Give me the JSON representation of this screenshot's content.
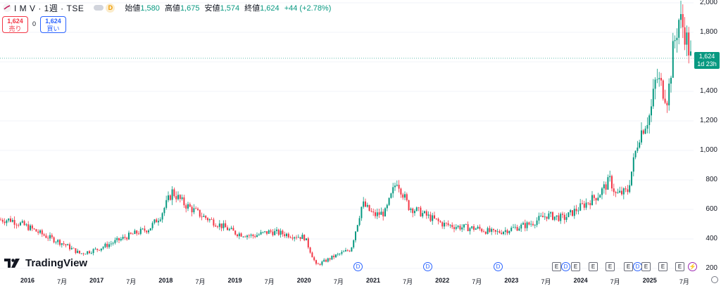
{
  "legend": {
    "symbol": "I M V · 1週 · TSE",
    "dividend_badge": "D",
    "open_label": "始値",
    "open": "1,580",
    "high_label": "高値",
    "high": "1,675",
    "low_label": "安値",
    "low": "1,574",
    "close_label": "終値",
    "close": "1,624",
    "change": "+44 (+2.78%)"
  },
  "trade": {
    "sell_price": "1,624",
    "sell_label": "売り",
    "spread": "0",
    "buy_price": "1,624",
    "buy_label": "買い"
  },
  "price_tag": {
    "price": "1,624",
    "countdown": "1d 23h"
  },
  "logo_text": "TradingView",
  "colors": {
    "up": "#089981",
    "down": "#f23645",
    "accent": "#2962ff"
  },
  "chart_data": {
    "type": "candlestick",
    "y_ticks": [
      "2,000",
      "1,800",
      "1,600",
      "1,400",
      "1,200",
      "1,000",
      "800",
      "600",
      "400",
      "200"
    ],
    "ylim": [
      200,
      2000
    ],
    "current_price": 1624,
    "x_ticks": [
      "2016",
      "7月",
      "2017",
      "7月",
      "2018",
      "7月",
      "2019",
      "7月",
      "2020",
      "7月",
      "2021",
      "7月",
      "2022",
      "7月",
      "2023",
      "7月",
      "2024",
      "7月",
      "2025",
      "7月"
    ],
    "series": [
      {
        "name": "IMV",
        "points": [
          [
            "2015-10",
            530
          ],
          [
            "2016-01",
            480
          ],
          [
            "2016-04",
            420
          ],
          [
            "2016-07",
            370
          ],
          [
            "2016-10",
            300
          ],
          [
            "2017-01",
            330
          ],
          [
            "2017-04",
            380
          ],
          [
            "2017-07",
            430
          ],
          [
            "2017-10",
            470
          ],
          [
            "2017-12",
            560
          ],
          [
            "2018-02",
            720
          ],
          [
            "2018-04",
            640
          ],
          [
            "2018-07",
            560
          ],
          [
            "2018-10",
            500
          ],
          [
            "2019-01",
            440
          ],
          [
            "2019-04",
            420
          ],
          [
            "2019-07",
            450
          ],
          [
            "2019-10",
            430
          ],
          [
            "2020-01",
            410
          ],
          [
            "2020-03",
            220
          ],
          [
            "2020-06",
            280
          ],
          [
            "2020-09",
            330
          ],
          [
            "2020-11",
            640
          ],
          [
            "2021-01",
            560
          ],
          [
            "2021-03",
            580
          ],
          [
            "2021-05",
            800
          ],
          [
            "2021-07",
            620
          ],
          [
            "2021-10",
            560
          ],
          [
            "2022-01",
            500
          ],
          [
            "2022-04",
            480
          ],
          [
            "2022-07",
            470
          ],
          [
            "2022-10",
            440
          ],
          [
            "2023-01",
            470
          ],
          [
            "2023-04",
            500
          ],
          [
            "2023-07",
            560
          ],
          [
            "2023-10",
            540
          ],
          [
            "2024-01",
            620
          ],
          [
            "2024-04",
            700
          ],
          [
            "2024-06",
            800
          ],
          [
            "2024-07",
            700
          ],
          [
            "2024-09",
            720
          ],
          [
            "2024-11",
            1100
          ],
          [
            "2025-01",
            1250
          ],
          [
            "2025-02",
            1500
          ],
          [
            "2025-04",
            1350
          ],
          [
            "2025-05",
            1700
          ],
          [
            "2025-06",
            1900
          ],
          [
            "2025-07",
            1800
          ],
          [
            "2025-08",
            1624
          ]
        ]
      }
    ]
  },
  "events": [
    {
      "type": "dividend",
      "label": "D"
    },
    {
      "type": "dividend",
      "label": "D"
    },
    {
      "type": "dividend",
      "label": "D"
    },
    {
      "type": "earnings",
      "label": "E"
    },
    {
      "type": "dividend",
      "label": "D"
    },
    {
      "type": "earnings",
      "label": "E"
    },
    {
      "type": "earnings",
      "label": "E"
    },
    {
      "type": "earnings",
      "label": "E"
    },
    {
      "type": "earnings",
      "label": "E"
    },
    {
      "type": "dividend",
      "label": "D"
    },
    {
      "type": "earnings",
      "label": "E"
    },
    {
      "type": "earnings",
      "label": "E"
    },
    {
      "type": "earnings",
      "label": "E"
    },
    {
      "type": "split",
      "label": "⚡"
    }
  ]
}
